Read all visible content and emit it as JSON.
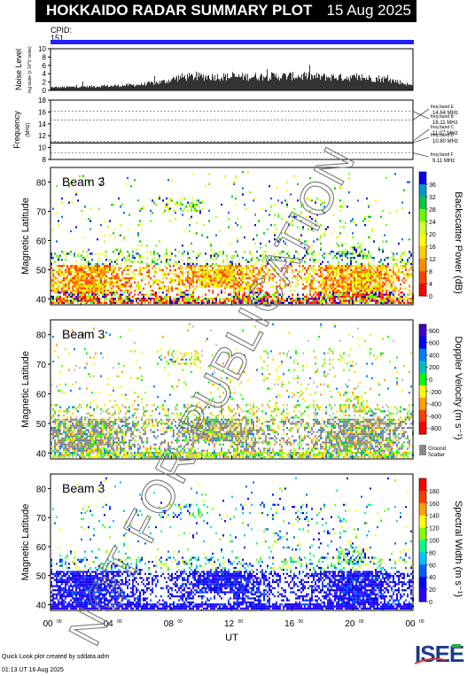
{
  "header": {
    "title": "HOKKAIDO RADAR SUMMARY PLOT",
    "date": "15 Aug 2025"
  },
  "cpid": {
    "label": "CPID:",
    "value": "151"
  },
  "watermark": "NOT FOR PUBLICATION",
  "footer": {
    "credit": "Quick Look plot created by sddata.adm",
    "timestamp": "01:13 UT 16 Aug 2025"
  },
  "logo": "ISEE",
  "colors": {
    "cpid_bar": "#2020ff",
    "freq_line": "#000000"
  },
  "chart_data": [
    {
      "type": "bar",
      "ylabel": "Noise Level",
      "ysub": "log scale (x 10^2 noise)",
      "yticks": [
        "0",
        "2",
        "4",
        "6",
        "8",
        "10"
      ],
      "ylim": [
        0,
        10
      ],
      "noise_profile": [
        [
          0,
          0.8
        ],
        [
          4,
          1.2
        ],
        [
          6,
          1.6
        ],
        [
          7.5,
          2.4
        ],
        [
          8.5,
          3.6
        ],
        [
          10,
          3.8
        ],
        [
          12,
          3.7
        ],
        [
          14,
          3.8
        ],
        [
          16,
          3.9
        ],
        [
          18,
          3.7
        ],
        [
          20,
          3.5
        ],
        [
          22,
          3.2
        ],
        [
          23,
          2.4
        ],
        [
          24,
          1.2
        ]
      ]
    },
    {
      "type": "line",
      "ylabel": "Frequency",
      "yunit": "(MHz)",
      "yticks": [
        "8",
        "10",
        "12",
        "14",
        "16",
        "18"
      ],
      "ylim": [
        8,
        18
      ],
      "bands": [
        {
          "label": "freq band B",
          "freq": "16.11 MHz",
          "y": 16.11
        },
        {
          "label": "freq band E",
          "freq": "14.64 MHz",
          "y": 14.64
        },
        {
          "label": "freq band C",
          "freq": "11.07 MHz",
          "y": 11.07
        },
        {
          "label": "freq band D",
          "freq": "10.80 MHz",
          "y": 10.8
        },
        {
          "label": "freq band F",
          "freq": "9.11 MHz",
          "y": 9.11
        }
      ],
      "operating_freq": 10.8
    },
    {
      "type": "heatmap",
      "beam": "Beam  3",
      "ylabel": "Magnetic Latitude",
      "yticks": [
        "40",
        "50",
        "60",
        "70",
        "80"
      ],
      "ylim": [
        38,
        85
      ],
      "colorbar_label": "Backscatter Power (dB)",
      "colorbar_ticks": [
        "0",
        "4",
        "8",
        "12",
        "16",
        "20",
        "24",
        "28",
        "32",
        "36"
      ],
      "colorbar_range": [
        0,
        36
      ]
    },
    {
      "type": "heatmap",
      "beam": "Beam  3",
      "ylabel": "Magnetic Latitude",
      "yticks": [
        "40",
        "50",
        "60",
        "70",
        "80"
      ],
      "ylim": [
        38,
        85
      ],
      "colorbar_label": "Doppler Velocity (m s⁻¹)",
      "colorbar_ticks": [
        "800",
        "600",
        "400",
        "200",
        "0",
        "-200",
        "-400",
        "-600",
        "-800"
      ],
      "colorbar_range": [
        -800,
        800
      ],
      "ground_scatter_label": [
        "Ground",
        "Scatter"
      ]
    },
    {
      "type": "heatmap",
      "beam": "Beam  3",
      "ylabel": "Magnetic Latitude",
      "yticks": [
        "40",
        "50",
        "60",
        "70",
        "80"
      ],
      "ylim": [
        38,
        85
      ],
      "colorbar_label": "Spectral Width (m s⁻¹)",
      "colorbar_ticks": [
        "0",
        "20",
        "40",
        "60",
        "80",
        "100",
        "120",
        "140",
        "160",
        "180"
      ],
      "colorbar_range": [
        0,
        180
      ]
    }
  ],
  "xaxis": {
    "label": "UT",
    "ticks": [
      "00",
      "04",
      "08",
      "12",
      "16",
      "20",
      "00"
    ],
    "tick_sup": "00"
  }
}
